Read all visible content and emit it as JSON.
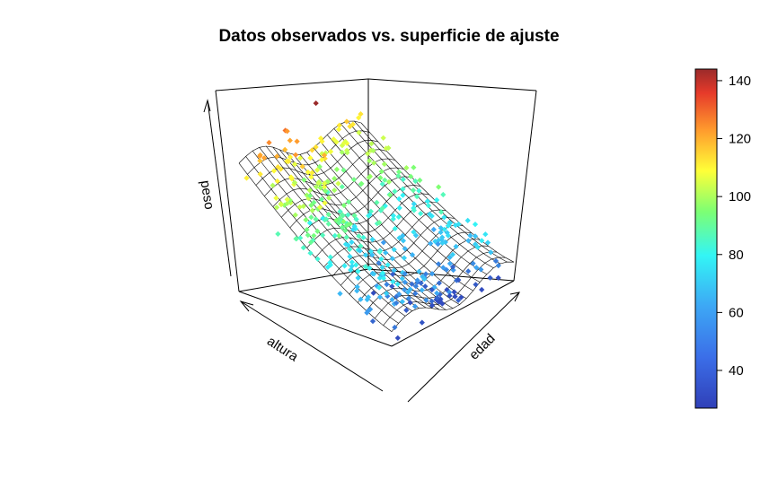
{
  "chart_data": {
    "type": "scatter",
    "subtype": "3d-scatter-with-fitted-surface",
    "title": "Datos observados vs. superficie de ajuste",
    "axes": {
      "x": {
        "label": "altura"
      },
      "y": {
        "label": "edad"
      },
      "z": {
        "label": "peso"
      }
    },
    "colorbar": {
      "ticks": [
        40,
        60,
        80,
        100,
        120,
        140
      ],
      "range": [
        27,
        144
      ],
      "palette": [
        "#3040b8",
        "#3da7f5",
        "#33f5f5",
        "#7dff73",
        "#ffff38",
        "#ff9b2d",
        "#e63a2a",
        "#9a2a2a"
      ],
      "position": "right"
    },
    "observations": {
      "peso_range": [
        27,
        144
      ],
      "marker": "small square",
      "count_shown": 400
    },
    "fitted_surface": {
      "style": "wireframe mesh",
      "color": "#000000"
    },
    "grid": false,
    "box": true
  }
}
